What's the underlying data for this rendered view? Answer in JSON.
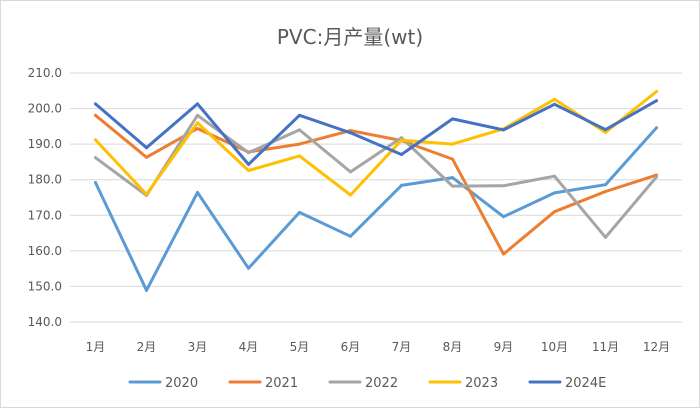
{
  "chart_data": {
    "type": "line",
    "title": "PVC:月产量(wt)",
    "xlabel": "",
    "ylabel": "",
    "categories": [
      "1月",
      "2月",
      "3月",
      "4月",
      "5月",
      "6月",
      "7月",
      "8月",
      "9月",
      "10月",
      "11月",
      "12月"
    ],
    "ylim": [
      140,
      210
    ],
    "yticks": [
      "140.0",
      "150.0",
      "160.0",
      "170.0",
      "180.0",
      "190.0",
      "200.0",
      "210.0"
    ],
    "ytick_values": [
      140,
      150,
      160,
      170,
      180,
      190,
      200,
      210
    ],
    "grid": true,
    "legend_position": "bottom",
    "series": [
      {
        "name": "2020",
        "color": "#5b9bd5",
        "values": [
          179.2,
          148.9,
          176.4,
          155.1,
          170.8,
          164.1,
          178.4,
          180.6,
          169.6,
          176.3,
          178.6,
          194.6
        ]
      },
      {
        "name": "2021",
        "color": "#ed7d31",
        "values": [
          198.1,
          186.3,
          194.4,
          187.8,
          190.0,
          193.8,
          191.0,
          185.8,
          159.1,
          171.0,
          176.7,
          181.3
        ]
      },
      {
        "name": "2022",
        "color": "#a5a5a5",
        "values": [
          186.2,
          175.6,
          198.1,
          187.6,
          194.0,
          182.2,
          191.8,
          178.2,
          178.3,
          181.0,
          163.8,
          180.8
        ]
      },
      {
        "name": "2023",
        "color": "#ffc000",
        "values": [
          191.2,
          175.9,
          196.0,
          182.6,
          186.7,
          175.7,
          191.1,
          190.0,
          194.3,
          202.6,
          193.3,
          204.8
        ]
      },
      {
        "name": "2024E",
        "color": "#4472c4",
        "values": [
          201.3,
          189.0,
          201.3,
          184.3,
          198.1,
          193.2,
          187.1,
          197.1,
          194.0,
          201.2,
          194.1,
          202.2
        ]
      }
    ]
  }
}
